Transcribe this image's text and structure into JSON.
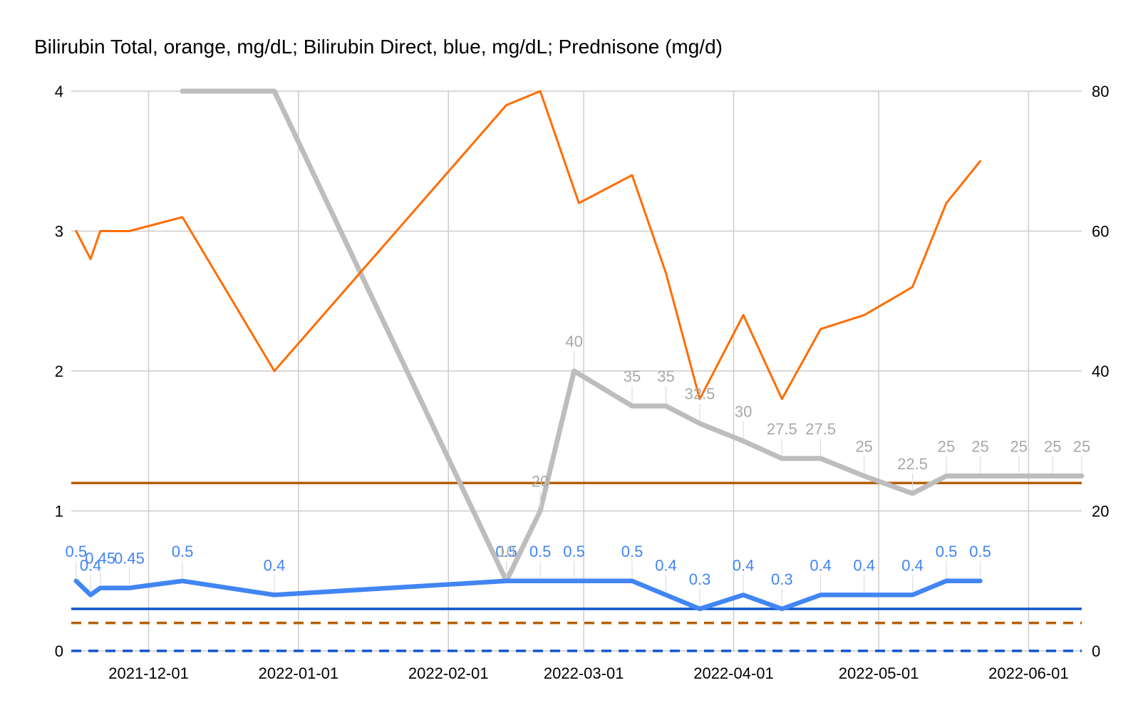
{
  "chart_data": {
    "type": "line",
    "title": "Bilirubin Total, orange, mg/dL; Bilirubin Direct, blue, mg/dL; Prednisone (mg/d)",
    "xlabel": "",
    "ylabel": "",
    "x_axis": {
      "type": "date",
      "range": [
        "2021-11-15",
        "2022-06-12"
      ],
      "ticks": [
        "2021-12-01",
        "2022-01-01",
        "2022-02-01",
        "2022-03-01",
        "2022-04-01",
        "2022-05-01",
        "2022-06-01"
      ]
    },
    "y_left": {
      "range": [
        0,
        4
      ],
      "ticks": [
        "0",
        "1",
        "2",
        "3",
        "4"
      ]
    },
    "y_right": {
      "range": [
        0,
        80
      ],
      "ticks": [
        "0",
        "20",
        "40",
        "60",
        "80"
      ]
    },
    "grid": true,
    "legend": "none",
    "colors": {
      "total": "#ff6d01",
      "direct": "#4285f4",
      "prednisone": "#bdbdbd",
      "total_ref": "#b45f06",
      "direct_ref": "#1155cc",
      "prednisone_label": "#a8a8a8"
    },
    "series": [
      {
        "axis": "left",
        "color_key": "total",
        "show_labels": false,
        "points": [
          {
            "x": "2021-11-16",
            "y": 3.0
          },
          {
            "x": "2021-11-19",
            "y": 2.8
          },
          {
            "x": "2021-11-21",
            "y": 3.0
          },
          {
            "x": "2021-11-27",
            "y": 3.0
          },
          {
            "x": "2021-12-08",
            "y": 3.1
          },
          {
            "x": "2021-12-27",
            "y": 2.0
          },
          {
            "x": "2022-02-13",
            "y": 3.9
          },
          {
            "x": "2022-02-20",
            "y": 4.0
          },
          {
            "x": "2022-02-28",
            "y": 3.2
          },
          {
            "x": "2022-03-11",
            "y": 3.4
          },
          {
            "x": "2022-03-18",
            "y": 2.7
          },
          {
            "x": "2022-03-25",
            "y": 1.8
          },
          {
            "x": "2022-04-03",
            "y": 2.4
          },
          {
            "x": "2022-04-11",
            "y": 1.8
          },
          {
            "x": "2022-04-19",
            "y": 2.3
          },
          {
            "x": "2022-04-28",
            "y": 2.4
          },
          {
            "x": "2022-05-08",
            "y": 2.6
          },
          {
            "x": "2022-05-15",
            "y": 3.2
          },
          {
            "x": "2022-05-22",
            "y": 3.5
          }
        ]
      },
      {
        "axis": "left",
        "color_key": "direct",
        "show_labels": true,
        "points": [
          {
            "x": "2021-11-16",
            "y": 0.5,
            "label": "0.5"
          },
          {
            "x": "2021-11-19",
            "y": 0.4,
            "label": "0.4"
          },
          {
            "x": "2021-11-21",
            "y": 0.45,
            "label": "0.45"
          },
          {
            "x": "2021-11-27",
            "y": 0.45,
            "label": "0.45"
          },
          {
            "x": "2021-12-08",
            "y": 0.5,
            "label": "0.5"
          },
          {
            "x": "2021-12-27",
            "y": 0.4,
            "label": "0.4"
          },
          {
            "x": "2022-02-13",
            "y": 0.5,
            "label": "0.5"
          },
          {
            "x": "2022-02-20",
            "y": 0.5,
            "label": "0.5"
          },
          {
            "x": "2022-02-27",
            "y": 0.5,
            "label": "0.5"
          },
          {
            "x": "2022-03-11",
            "y": 0.5,
            "label": "0.5"
          },
          {
            "x": "2022-03-18",
            "y": 0.4,
            "label": "0.4"
          },
          {
            "x": "2022-03-25",
            "y": 0.3,
            "label": "0.3"
          },
          {
            "x": "2022-04-03",
            "y": 0.4,
            "label": "0.4"
          },
          {
            "x": "2022-04-11",
            "y": 0.3,
            "label": "0.3"
          },
          {
            "x": "2022-04-19",
            "y": 0.4,
            "label": "0.4"
          },
          {
            "x": "2022-04-28",
            "y": 0.4,
            "label": "0.4"
          },
          {
            "x": "2022-05-08",
            "y": 0.4,
            "label": "0.4"
          },
          {
            "x": "2022-05-15",
            "y": 0.5,
            "label": "0.5"
          },
          {
            "x": "2022-05-22",
            "y": 0.5,
            "label": "0.5"
          }
        ]
      },
      {
        "axis": "right",
        "color_key": "prednisone",
        "show_labels": true,
        "points": [
          {
            "x": "2021-12-08",
            "y": 80
          },
          {
            "x": "2021-12-27",
            "y": 80
          },
          {
            "x": "2022-02-13",
            "y": 10,
            "label": "10"
          },
          {
            "x": "2022-02-20",
            "y": 20,
            "label": "20"
          },
          {
            "x": "2022-02-27",
            "y": 40,
            "label": "40"
          },
          {
            "x": "2022-03-11",
            "y": 35,
            "label": "35"
          },
          {
            "x": "2022-03-18",
            "y": 35,
            "label": "35"
          },
          {
            "x": "2022-03-25",
            "y": 32.5,
            "label": "32.5"
          },
          {
            "x": "2022-04-03",
            "y": 30,
            "label": "30"
          },
          {
            "x": "2022-04-11",
            "y": 27.5,
            "label": "27.5"
          },
          {
            "x": "2022-04-19",
            "y": 27.5,
            "label": "27.5"
          },
          {
            "x": "2022-04-28",
            "y": 25,
            "label": "25"
          },
          {
            "x": "2022-05-08",
            "y": 22.5,
            "label": "22.5"
          },
          {
            "x": "2022-05-15",
            "y": 25,
            "label": "25"
          },
          {
            "x": "2022-05-22",
            "y": 25,
            "label": "25"
          },
          {
            "x": "2022-05-30",
            "y": 25,
            "label": "25"
          },
          {
            "x": "2022-06-06",
            "y": 25,
            "label": "25"
          },
          {
            "x": "2022-06-12",
            "y": 25,
            "label": "25"
          }
        ]
      }
    ],
    "reference_lines": [
      {
        "axis": "left",
        "y": 1.2,
        "color_key": "total_ref",
        "dashed": false
      },
      {
        "axis": "left",
        "y": 0.3,
        "color_key": "direct_ref",
        "dashed": false
      },
      {
        "axis": "left",
        "y": 0.2,
        "color_key": "total_ref",
        "dashed": true
      },
      {
        "axis": "left",
        "y": 0.0,
        "color_key": "direct_ref",
        "dashed": true
      }
    ]
  }
}
